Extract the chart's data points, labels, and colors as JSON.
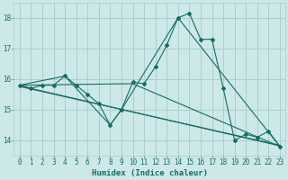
{
  "title": "",
  "xlabel": "Humidex (Indice chaleur)",
  "bg_color": "#cce8e8",
  "grid_color": "#aacfcf",
  "line_color": "#1a6b62",
  "x_ticks": [
    0,
    1,
    2,
    3,
    4,
    5,
    6,
    7,
    8,
    9,
    10,
    11,
    12,
    13,
    14,
    15,
    16,
    17,
    18,
    19,
    20,
    21,
    22,
    23
  ],
  "y_ticks": [
    14,
    15,
    16,
    17,
    18
  ],
  "ylim": [
    13.5,
    18.5
  ],
  "xlim": [
    -0.5,
    23.5
  ],
  "series1_x": [
    0,
    1,
    2,
    3,
    4,
    5,
    6,
    7,
    8,
    9,
    10,
    11,
    12,
    13,
    14,
    15,
    16,
    17,
    18,
    19,
    20,
    21,
    22,
    23
  ],
  "series1_y": [
    15.8,
    15.7,
    15.8,
    15.8,
    16.1,
    15.8,
    15.5,
    15.2,
    14.5,
    15.0,
    15.9,
    15.85,
    16.4,
    17.1,
    18.0,
    18.15,
    17.3,
    17.3,
    15.7,
    14.0,
    14.2,
    14.1,
    14.3,
    13.8
  ],
  "series2_x": [
    0,
    4,
    8,
    9,
    14,
    23
  ],
  "series2_y": [
    15.8,
    16.1,
    14.5,
    15.0,
    18.0,
    13.8
  ],
  "series3_x": [
    0,
    10,
    23
  ],
  "series3_y": [
    15.8,
    15.85,
    13.8
  ],
  "series4_x": [
    0,
    23
  ],
  "series4_y": [
    15.78,
    13.82
  ],
  "series5_x": [
    0,
    23
  ],
  "series5_y": [
    15.76,
    13.84
  ],
  "font_color": "#1a6b62",
  "tick_fontsize": 5.5,
  "label_fontsize": 6.5
}
